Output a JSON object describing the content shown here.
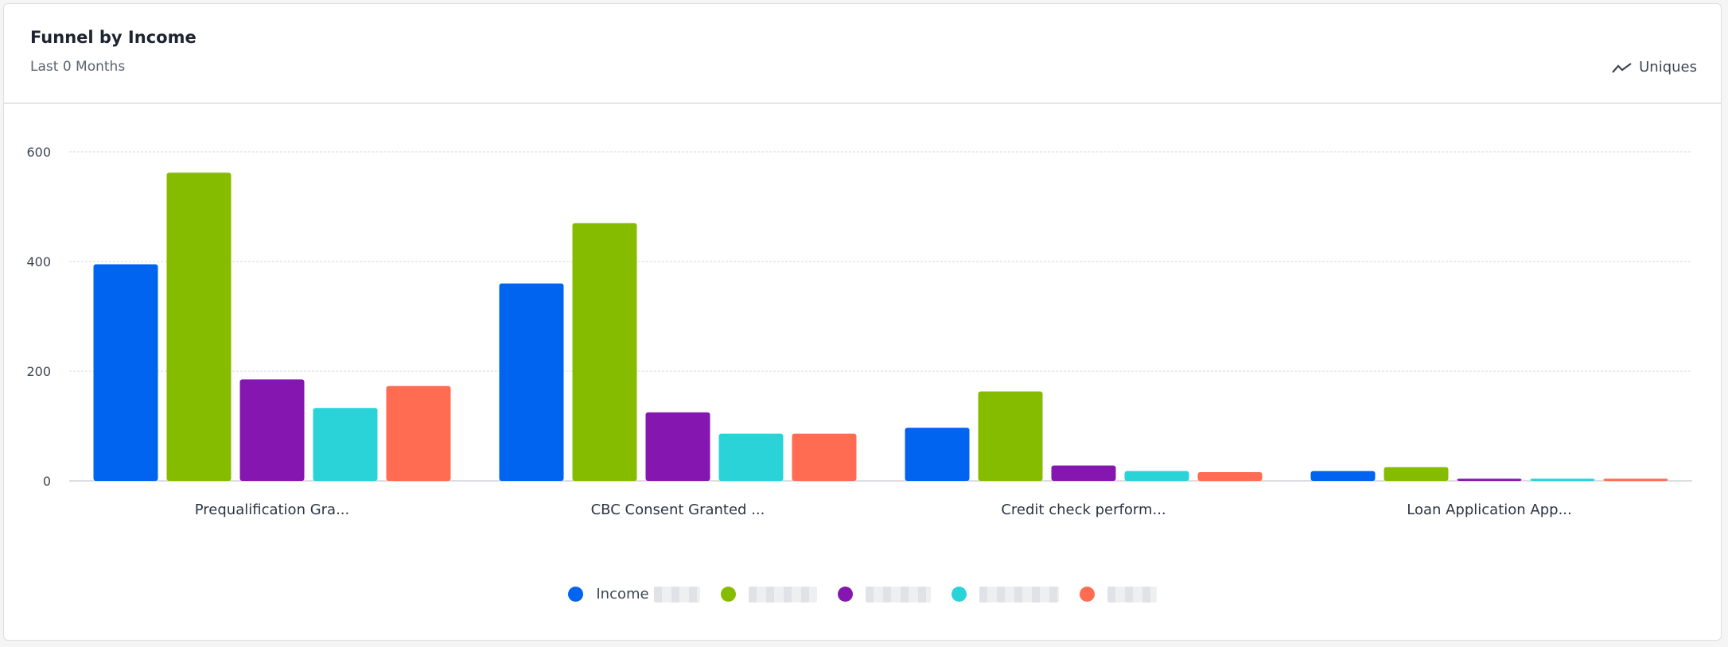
{
  "header": {
    "title": "Funnel by Income",
    "subtitle": "Last 0 Months",
    "metric_label": "Uniques"
  },
  "chart_data": {
    "type": "bar",
    "title": "Funnel by Income",
    "subtitle": "Last 0 Months",
    "categories": [
      "Prequalification Gra...",
      "CBC Consent Granted ...",
      "Credit check perform...",
      "Loan Application App..."
    ],
    "series": [
      {
        "name": "Income",
        "color": "#0064f0",
        "values": [
          395,
          360,
          97,
          18
        ]
      },
      {
        "color": "#86bc00",
        "values": [
          562,
          470,
          163,
          25
        ]
      },
      {
        "color": "#8516b0",
        "values": [
          185,
          125,
          28,
          4
        ]
      },
      {
        "color": "#29d3d8",
        "values": [
          133,
          86,
          18,
          4
        ]
      },
      {
        "color": "#ff6c52",
        "values": [
          173,
          86,
          16,
          4
        ]
      }
    ],
    "ylim": [
      0,
      600
    ],
    "yticks": [
      0,
      200,
      400,
      600
    ],
    "grid": true,
    "legend_position": "bottom"
  }
}
